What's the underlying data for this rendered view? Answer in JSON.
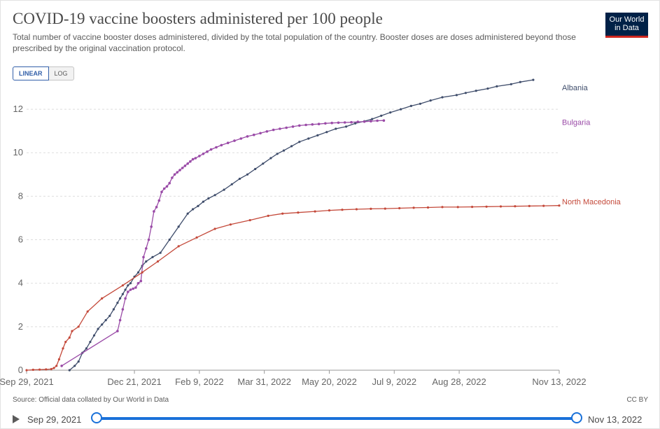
{
  "header": {
    "title": "COVID-19 vaccine boosters administered per 100 people",
    "subtitle": "Total number of vaccine booster doses administered, divided by the total population of the country. Booster doses are doses administered beyond those prescribed by the original vaccination protocol.",
    "logo_line1": "Our World",
    "logo_line2": "in Data"
  },
  "controls": {
    "linear_label": "LINEAR",
    "log_label": "LOG"
  },
  "colors": {
    "albania": "#3f4d6b",
    "bulgaria": "#9a4ba7",
    "north_macedonia": "#c4493a",
    "grid": "#dddddd",
    "axis_text": "#666666",
    "slider": "#1a71d9"
  },
  "footer": {
    "source": "Source: Official data collated by Our World in Data",
    "license": "CC BY"
  },
  "timeline": {
    "start_label": "Sep 29, 2021",
    "end_label": "Nov 13, 2022"
  },
  "chart_data": {
    "type": "line",
    "title": "COVID-19 vaccine boosters administered per 100 people",
    "xlabel": "",
    "ylabel": "",
    "x_unit": "days since Sep 29, 2021",
    "xlim": [
      0,
      410
    ],
    "ylim": [
      0,
      13
    ],
    "y_ticks": [
      0,
      2,
      4,
      6,
      8,
      10,
      12
    ],
    "x_ticks": [
      {
        "day": 0,
        "label": "Sep 29, 2021"
      },
      {
        "day": 83,
        "label": "Dec 21, 2021"
      },
      {
        "day": 133,
        "label": "Feb 9, 2022"
      },
      {
        "day": 183,
        "label": "Mar 31, 2022"
      },
      {
        "day": 233,
        "label": "May 20, 2022"
      },
      {
        "day": 283,
        "label": "Jul 9, 2022"
      },
      {
        "day": 333,
        "label": "Aug 28, 2022"
      },
      {
        "day": 410,
        "label": "Nov 13, 2022"
      }
    ],
    "grid": true,
    "series": [
      {
        "name": "Albania",
        "x": [
          33,
          37,
          40,
          43,
          46,
          49,
          52,
          55,
          58,
          61,
          64,
          67,
          70,
          72,
          74,
          76,
          78,
          80,
          83,
          86,
          89,
          92,
          97,
          103,
          110,
          117,
          124,
          128,
          132,
          136,
          140,
          145,
          152,
          158,
          164,
          170,
          176,
          182,
          188,
          193,
          198,
          204,
          210,
          217,
          224,
          231,
          238,
          246,
          253,
          260,
          266,
          273,
          280,
          288,
          296,
          303,
          311,
          320,
          331,
          338,
          346,
          355,
          362,
          373,
          380,
          390
        ],
        "values": [
          0.0,
          0.2,
          0.4,
          0.8,
          1.0,
          1.3,
          1.6,
          1.9,
          2.1,
          2.3,
          2.5,
          2.8,
          3.1,
          3.3,
          3.5,
          3.7,
          3.9,
          4.0,
          4.3,
          4.5,
          4.8,
          5.0,
          5.2,
          5.4,
          6.0,
          6.6,
          7.2,
          7.4,
          7.55,
          7.75,
          7.9,
          8.05,
          8.3,
          8.55,
          8.8,
          9.0,
          9.25,
          9.5,
          9.75,
          9.95,
          10.1,
          10.3,
          10.5,
          10.65,
          10.8,
          10.95,
          11.1,
          11.2,
          11.35,
          11.45,
          11.55,
          11.7,
          11.85,
          12.0,
          12.15,
          12.25,
          12.4,
          12.55,
          12.65,
          12.75,
          12.85,
          12.95,
          13.05,
          13.15,
          13.25,
          13.35
        ]
      },
      {
        "name": "Bulgaria",
        "x": [
          27,
          70,
          72,
          74,
          76,
          78,
          80,
          82,
          84,
          86,
          88,
          90,
          92,
          94,
          96,
          98,
          100,
          102,
          104,
          106,
          108,
          110,
          112,
          114,
          116,
          118,
          120,
          122,
          124,
          126,
          128,
          130,
          133,
          136,
          139,
          142,
          146,
          150,
          155,
          160,
          165,
          170,
          175,
          180,
          185,
          190,
          195,
          200,
          205,
          210,
          215,
          220,
          225,
          230,
          235,
          240,
          245,
          250,
          255,
          260,
          265,
          270,
          275
        ],
        "values": [
          0.2,
          1.8,
          2.3,
          2.8,
          3.3,
          3.6,
          3.7,
          3.75,
          3.8,
          4.0,
          4.1,
          5.2,
          5.6,
          6.0,
          6.6,
          7.3,
          7.5,
          7.8,
          8.2,
          8.35,
          8.45,
          8.6,
          8.85,
          9.0,
          9.1,
          9.2,
          9.3,
          9.4,
          9.5,
          9.6,
          9.7,
          9.75,
          9.85,
          9.95,
          10.05,
          10.15,
          10.25,
          10.35,
          10.45,
          10.55,
          10.65,
          10.75,
          10.82,
          10.9,
          10.98,
          11.05,
          11.1,
          11.15,
          11.2,
          11.25,
          11.28,
          11.3,
          11.32,
          11.35,
          11.37,
          11.38,
          11.39,
          11.4,
          11.42,
          11.43,
          11.45,
          11.47,
          11.48
        ]
      },
      {
        "name": "North Macedonia",
        "x": [
          0,
          5,
          10,
          15,
          19,
          21,
          23,
          25,
          28,
          30,
          33,
          35,
          40,
          47,
          58,
          74,
          89,
          101,
          117,
          131,
          145,
          157,
          172,
          186,
          197,
          209,
          222,
          233,
          243,
          254,
          265,
          276,
          287,
          298,
          309,
          320,
          332,
          343,
          354,
          365,
          376,
          387,
          398,
          410
        ],
        "values": [
          0.0,
          0.02,
          0.03,
          0.04,
          0.05,
          0.1,
          0.2,
          0.5,
          1.0,
          1.3,
          1.5,
          1.8,
          2.0,
          2.7,
          3.3,
          3.9,
          4.5,
          5.0,
          5.7,
          6.1,
          6.5,
          6.7,
          6.9,
          7.1,
          7.2,
          7.25,
          7.3,
          7.35,
          7.38,
          7.4,
          7.42,
          7.43,
          7.45,
          7.47,
          7.48,
          7.5,
          7.5,
          7.51,
          7.52,
          7.53,
          7.54,
          7.55,
          7.56,
          7.57
        ]
      }
    ]
  }
}
